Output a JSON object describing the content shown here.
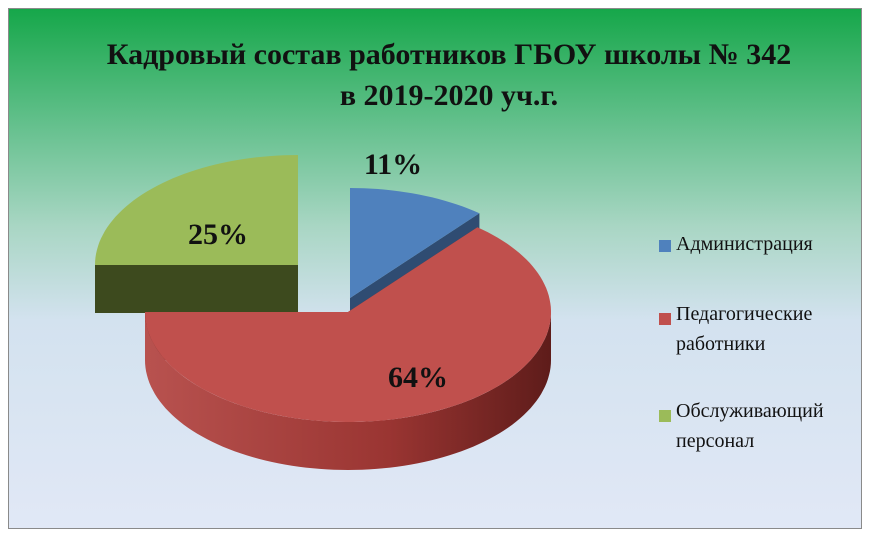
{
  "chart_data": {
    "type": "pie",
    "title": "Кадровый состав работников ГБОУ школы № 342 в 2019-2020 уч.г.",
    "categories": [
      "Администрация",
      "Педагогические работники",
      "Обслуживающий персонал"
    ],
    "values": [
      11,
      64,
      25
    ],
    "value_labels": [
      "11%",
      "64%",
      "25%"
    ],
    "colors": [
      "#4f81bd",
      "#c0504d",
      "#9bbb59"
    ],
    "legend": "right"
  }
}
